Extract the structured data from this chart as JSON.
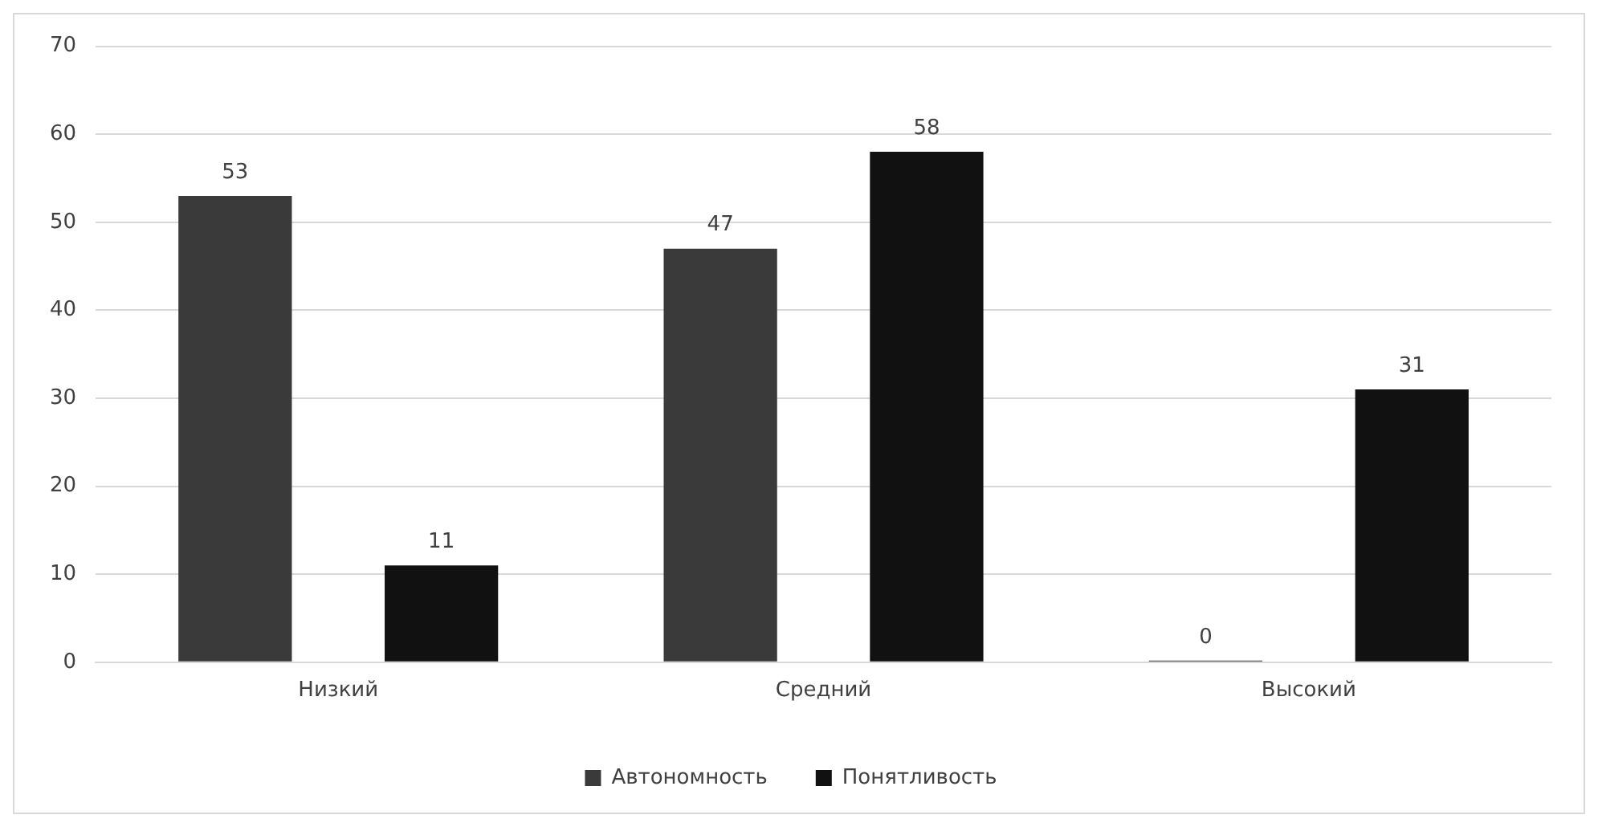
{
  "chart_data": {
    "type": "bar",
    "categories": [
      "Низкий",
      "Средний",
      "Высокий"
    ],
    "series": [
      {
        "name": "Автономность",
        "color": "#3a3a3a",
        "values": [
          53,
          47,
          0
        ]
      },
      {
        "name": "Понятливость",
        "color": "#111111",
        "values": [
          11,
          58,
          31
        ]
      }
    ],
    "ylim": [
      0,
      70
    ],
    "yticks": [
      0,
      10,
      20,
      30,
      40,
      50,
      60,
      70
    ],
    "grid": "y",
    "legend": "bottom",
    "data_labels": true
  }
}
